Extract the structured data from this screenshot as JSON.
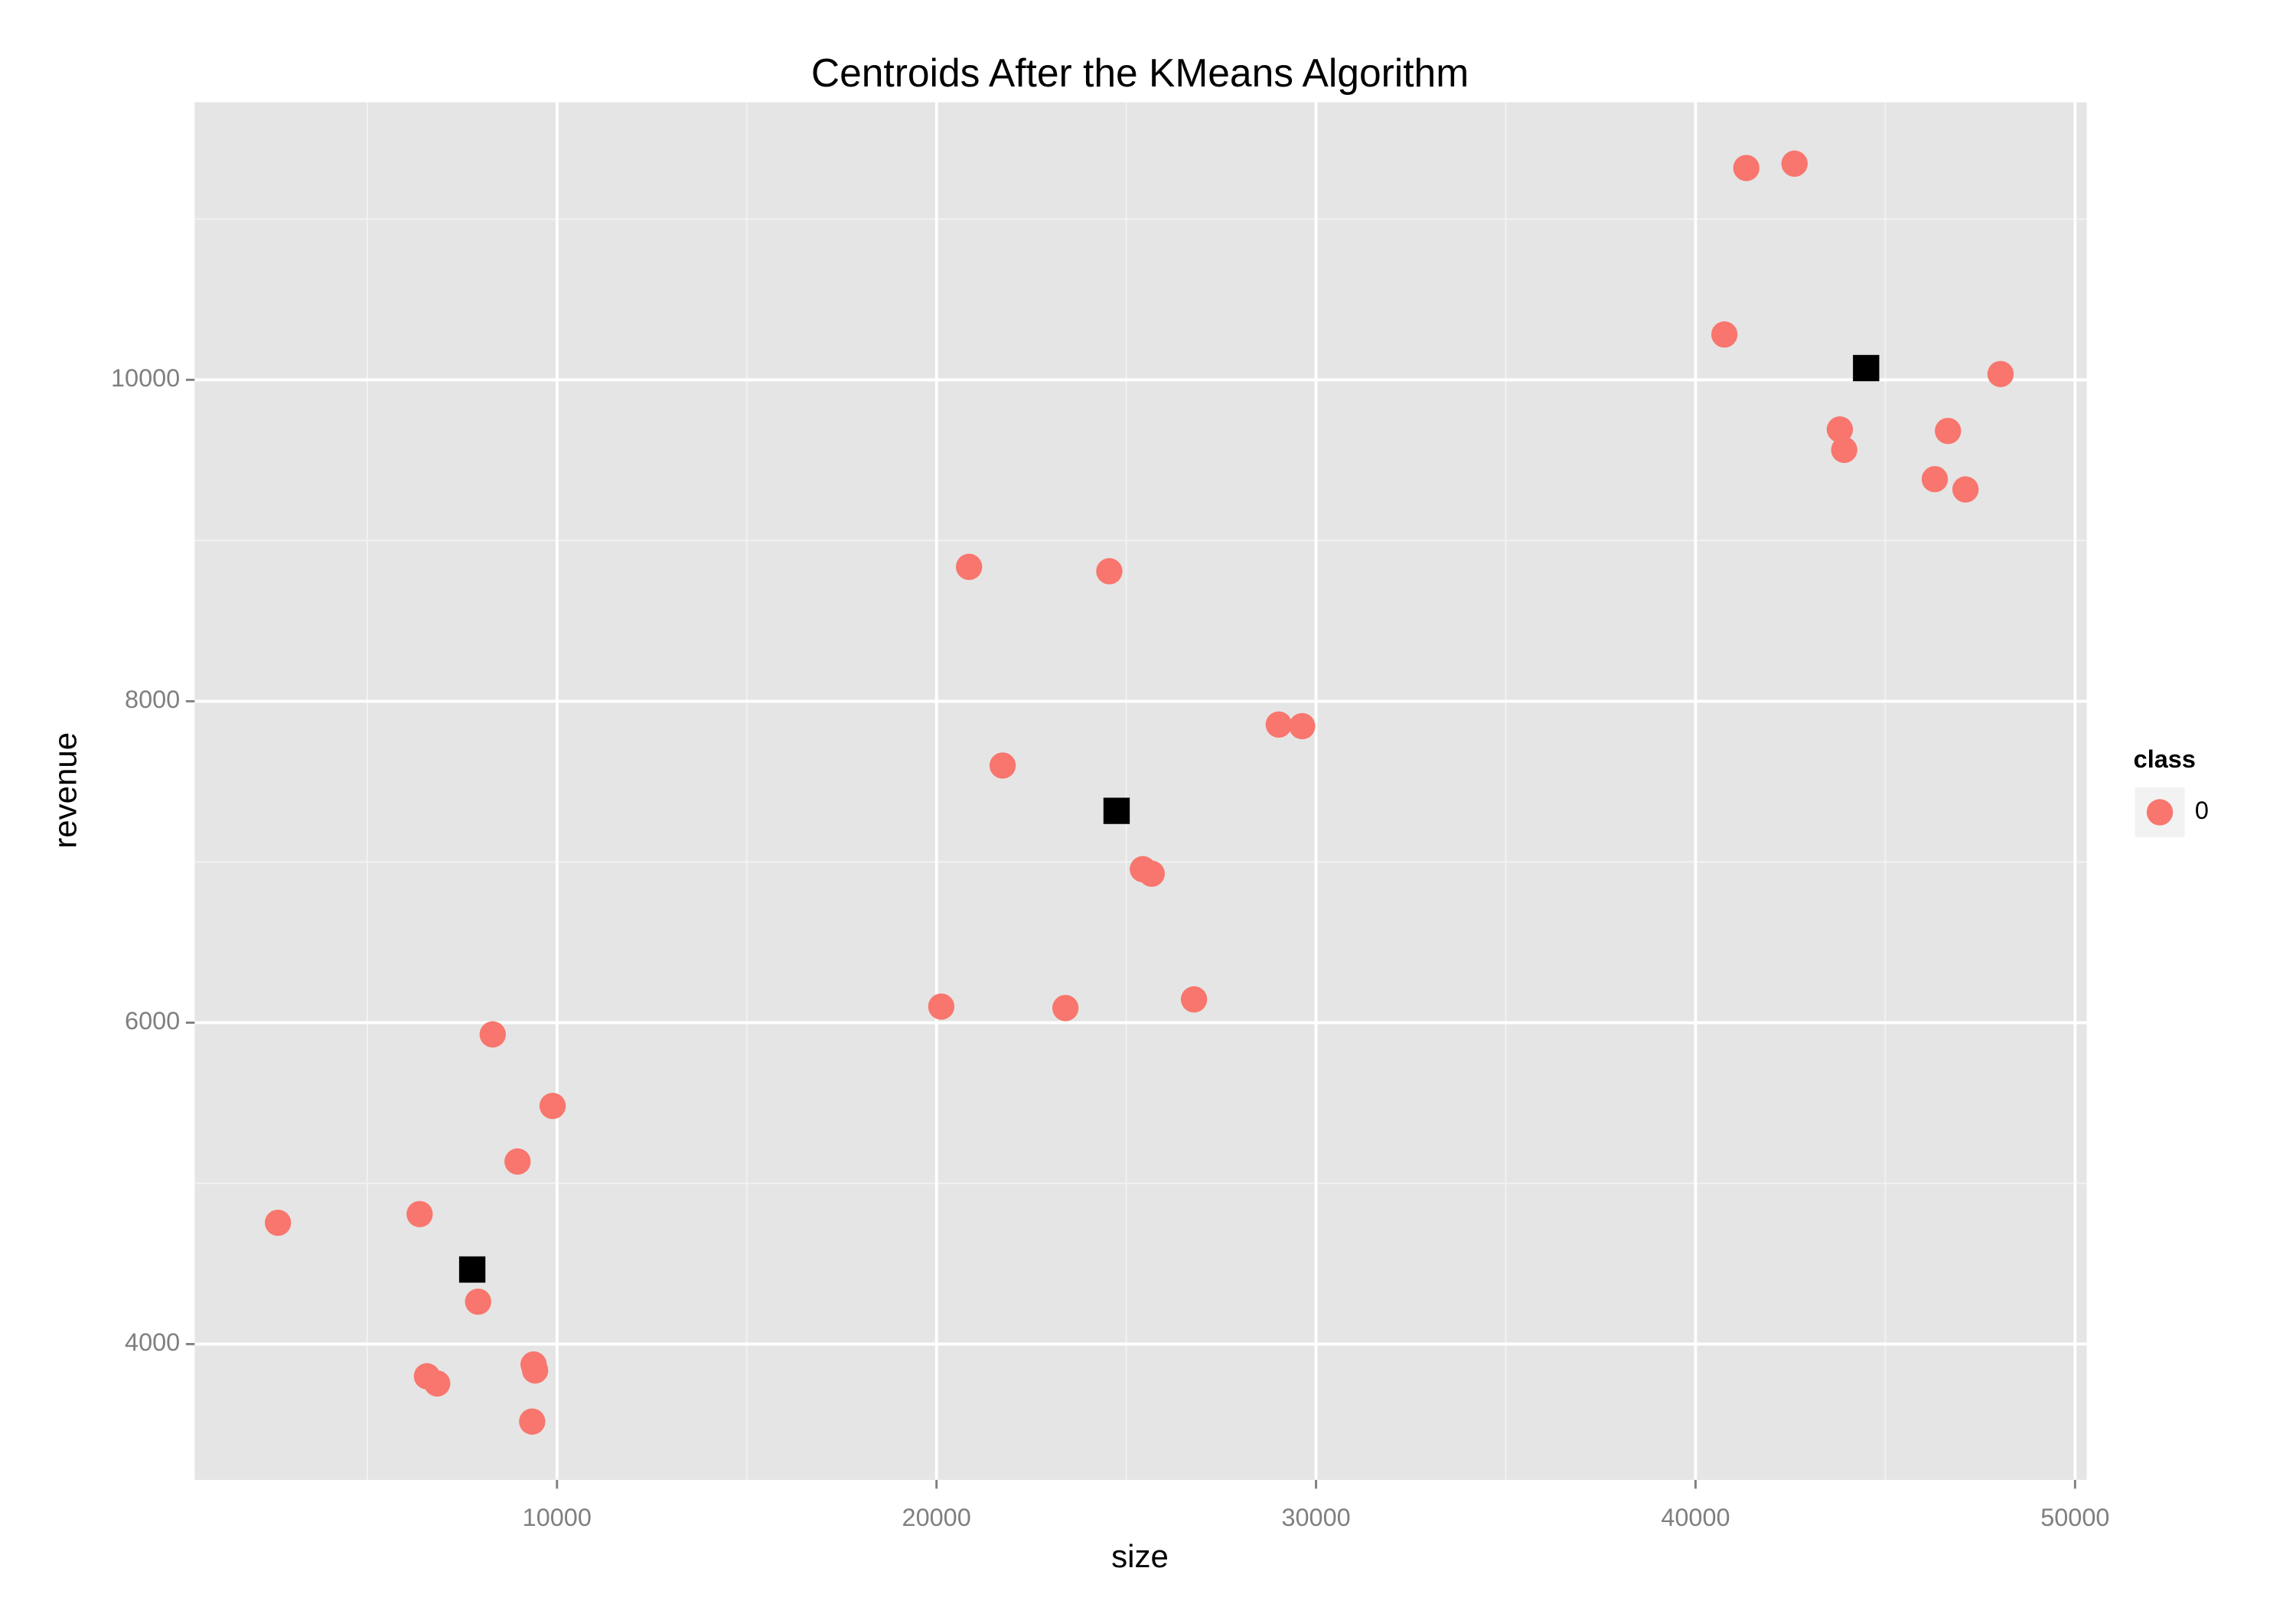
{
  "chart_data": {
    "type": "scatter",
    "title": "Centroids After the KMeans Algorithm",
    "x_label": "size",
    "y_label": "revenue",
    "xlim": [
      452,
      50308
    ],
    "ylim": [
      3155,
      11727
    ],
    "xticks": [
      10000,
      20000,
      30000,
      40000,
      50000
    ],
    "yticks": [
      4000,
      6000,
      8000,
      10000
    ],
    "xminor": [
      5000,
      15000,
      25000,
      35000,
      45000
    ],
    "yminor": [
      5000,
      7000,
      9000,
      11000
    ],
    "grid": true,
    "legend_position": "right",
    "legend_title": "class",
    "series": [
      {
        "name": "0",
        "color": "#f8766d",
        "x": [
          41338,
          42608,
          40760,
          48037,
          43802,
          43917,
          46651,
          46304,
          47113,
          20857,
          24553,
          29018,
          29634,
          21742,
          25438,
          25669,
          20125,
          23397,
          26785,
          8306,
          9885,
          8961,
          2647,
          6381,
          7921,
          9384,
          9423,
          6574,
          6843,
          9346
        ],
        "values": [
          11318,
          11345,
          10282,
          10036,
          9691,
          9564,
          9682,
          9382,
          9318,
          8836,
          8809,
          7855,
          7845,
          7600,
          6955,
          6927,
          6100,
          6091,
          6145,
          5927,
          5482,
          5136,
          4755,
          4809,
          4264,
          3873,
          3836,
          3800,
          3755,
          3518
        ]
      }
    ],
    "centroids": {
      "color": "#000000",
      "x": [
        7767,
        24745,
        44494
      ],
      "values": [
        4464,
        7318,
        10073
      ]
    }
  }
}
